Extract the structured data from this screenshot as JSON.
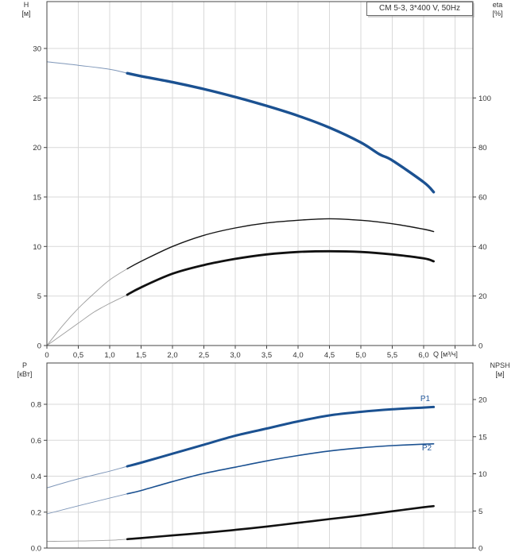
{
  "title_box": "CM 5-3, 3*400 V, 50Hz",
  "colors": {
    "blue": "#1b5191",
    "blue_thin": "#7e96b8",
    "black": "#151515",
    "black_thin": "#9e9e9e",
    "grid": "#d9d9d9",
    "axis": "#444444",
    "text": "#333333",
    "annotation_blue": "#24599c"
  },
  "chart_data": [
    {
      "type": "line",
      "name": "head-efficiency-chart",
      "x_axis": {
        "label": "Q [м³/ч]",
        "ticks": [
          0,
          0.5,
          1.0,
          1.5,
          2.0,
          2.5,
          3.0,
          3.5,
          4.0,
          4.5,
          5.0,
          5.5,
          6.0
        ],
        "tick_labels": [
          "0",
          "0,5",
          "1,0",
          "1,5",
          "2,0",
          "2,5",
          "3,0",
          "3,5",
          "4,0",
          "4,5",
          "5,0",
          "5,5",
          "6,0"
        ],
        "grid_max": 6.5,
        "axis_max": 6.78
      },
      "left_axis": {
        "label": "H",
        "unit": "[м]",
        "ticks": [
          0,
          5,
          10,
          15,
          20,
          25,
          30
        ],
        "tick_labels": [
          "0",
          "5",
          "10",
          "15",
          "20",
          "25",
          "30"
        ]
      },
      "right_axis": {
        "label": "eta",
        "unit": "[%]",
        "ticks": [
          0,
          20,
          40,
          60,
          80,
          100
        ],
        "tick_labels": [
          "0",
          "20",
          "40",
          "60",
          "80",
          "100"
        ]
      },
      "series": [
        {
          "name": "head-curve",
          "axis": "left",
          "color": "#1b5191",
          "thin_color": "#7e96b8",
          "thin_width": 1,
          "thick_width": 3.4,
          "thick_from": 1.28,
          "points": [
            [
              0,
              28.65
            ],
            [
              0.5,
              28.3
            ],
            [
              1.0,
              27.9
            ],
            [
              1.28,
              27.5
            ],
            [
              1.5,
              27.2
            ],
            [
              2.0,
              26.6
            ],
            [
              2.5,
              25.9
            ],
            [
              3.0,
              25.1
            ],
            [
              3.5,
              24.2
            ],
            [
              4.0,
              23.2
            ],
            [
              4.5,
              22.0
            ],
            [
              5.0,
              20.5
            ],
            [
              5.3,
              19.3
            ],
            [
              5.5,
              18.7
            ],
            [
              6.0,
              16.5
            ],
            [
              6.16,
              15.5
            ]
          ]
        },
        {
          "name": "eta-pump-curve",
          "axis": "right",
          "color": "#151515",
          "thin_color": "#9e9e9e",
          "thin_width": 0.9,
          "thick_width": 1.4,
          "thick_from": 1.28,
          "points": [
            [
              0,
              0
            ],
            [
              0.25,
              8
            ],
            [
              0.5,
              15
            ],
            [
              0.75,
              21
            ],
            [
              1.0,
              26.5
            ],
            [
              1.28,
              31
            ],
            [
              1.5,
              34
            ],
            [
              2.0,
              40
            ],
            [
              2.5,
              44.5
            ],
            [
              3.0,
              47.5
            ],
            [
              3.5,
              49.5
            ],
            [
              4.0,
              50.6
            ],
            [
              4.5,
              51.2
            ],
            [
              5.0,
              50.6
            ],
            [
              5.5,
              49.2
            ],
            [
              6.0,
              47
            ],
            [
              6.16,
              46
            ]
          ]
        },
        {
          "name": "eta-pump-motor-curve",
          "axis": "right",
          "color": "#111111",
          "thin_color": "#9e9e9e",
          "thin_width": 0.9,
          "thick_width": 2.8,
          "thick_from": 1.28,
          "points": [
            [
              0,
              0
            ],
            [
              0.25,
              4.5
            ],
            [
              0.5,
              9
            ],
            [
              0.75,
              13.5
            ],
            [
              1.0,
              17
            ],
            [
              1.28,
              20.5
            ],
            [
              1.5,
              23.5
            ],
            [
              2.0,
              29
            ],
            [
              2.5,
              32.5
            ],
            [
              3.0,
              35
            ],
            [
              3.5,
              36.8
            ],
            [
              4.0,
              37.8
            ],
            [
              4.5,
              38.1
            ],
            [
              5.0,
              37.8
            ],
            [
              5.5,
              36.8
            ],
            [
              6.0,
              35.2
            ],
            [
              6.16,
              34
            ]
          ]
        }
      ]
    },
    {
      "type": "line",
      "name": "power-npsh-chart",
      "left_axis": {
        "label": "P",
        "unit": "[кВт]",
        "ticks": [
          0,
          0.2,
          0.4,
          0.6,
          0.8
        ],
        "tick_labels": [
          "0.0",
          "0.2",
          "0.4",
          "0.6",
          "0.8"
        ]
      },
      "right_axis": {
        "label": "NPSH",
        "unit": "[м]",
        "ticks": [
          0,
          5,
          10,
          15,
          20
        ],
        "tick_labels": [
          "0",
          "5",
          "10",
          "15",
          "20"
        ]
      },
      "series": [
        {
          "name": "p1-curve",
          "annotation": "P1",
          "axis": "left",
          "color": "#1b5191",
          "thin_color": "#7e96b8",
          "thin_width": 1,
          "thick_width": 3,
          "thick_from": 1.28,
          "points": [
            [
              0,
              0.335
            ],
            [
              0.5,
              0.385
            ],
            [
              1.0,
              0.428
            ],
            [
              1.28,
              0.455
            ],
            [
              1.5,
              0.475
            ],
            [
              2.0,
              0.525
            ],
            [
              2.5,
              0.575
            ],
            [
              3.0,
              0.625
            ],
            [
              3.5,
              0.665
            ],
            [
              4.0,
              0.705
            ],
            [
              4.5,
              0.738
            ],
            [
              5.0,
              0.758
            ],
            [
              5.5,
              0.772
            ],
            [
              6.0,
              0.782
            ],
            [
              6.16,
              0.785
            ]
          ]
        },
        {
          "name": "p2-curve",
          "annotation": "P2",
          "axis": "left",
          "color": "#1b5191",
          "thin_color": "#7e96b8",
          "thin_width": 0.9,
          "thick_width": 1.6,
          "thick_from": 1.28,
          "points": [
            [
              0,
              0.19
            ],
            [
              0.5,
              0.235
            ],
            [
              1.0,
              0.278
            ],
            [
              1.28,
              0.302
            ],
            [
              1.5,
              0.32
            ],
            [
              2.0,
              0.37
            ],
            [
              2.5,
              0.415
            ],
            [
              3.0,
              0.45
            ],
            [
              3.5,
              0.485
            ],
            [
              4.0,
              0.515
            ],
            [
              4.5,
              0.54
            ],
            [
              5.0,
              0.558
            ],
            [
              5.5,
              0.57
            ],
            [
              6.0,
              0.578
            ],
            [
              6.16,
              0.58
            ]
          ]
        },
        {
          "name": "npsh-curve",
          "axis": "right",
          "color": "#111111",
          "thin_color": "#9e9e9e",
          "thin_width": 0.9,
          "thick_width": 2.6,
          "thick_from": 1.28,
          "points": [
            [
              0,
              0.9
            ],
            [
              0.5,
              0.95
            ],
            [
              1.0,
              1.05
            ],
            [
              1.28,
              1.2
            ],
            [
              1.5,
              1.35
            ],
            [
              2.0,
              1.7
            ],
            [
              2.5,
              2.05
            ],
            [
              3.0,
              2.45
            ],
            [
              3.5,
              2.9
            ],
            [
              4.0,
              3.4
            ],
            [
              4.5,
              3.9
            ],
            [
              5.0,
              4.4
            ],
            [
              5.5,
              4.95
            ],
            [
              6.0,
              5.5
            ],
            [
              6.16,
              5.65
            ]
          ]
        }
      ]
    }
  ]
}
